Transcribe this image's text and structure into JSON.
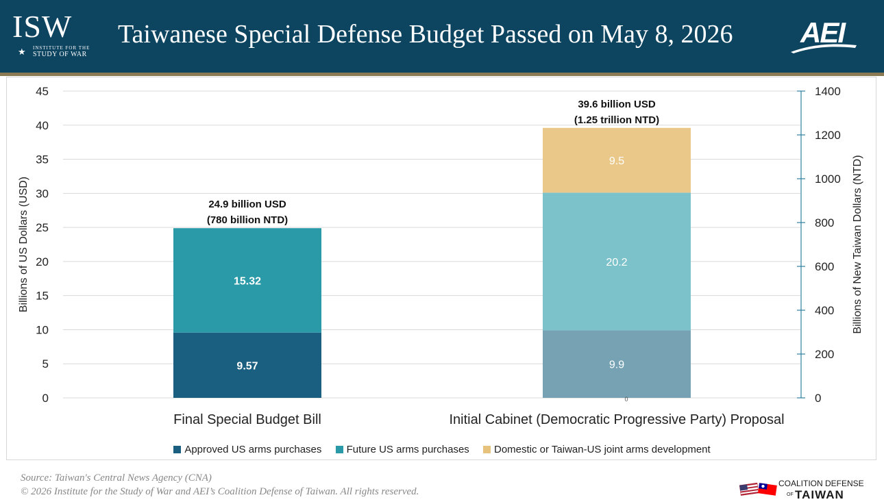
{
  "header": {
    "title": "Taiwanese Special Defense Budget Passed on May 8, 2026",
    "isw_logo": {
      "mark": "ISW",
      "line1": "INSTITUTE FOR THE",
      "line2": "STUDY OF WAR"
    },
    "aei_logo": {
      "mark": "AEI"
    },
    "bg_color": "#0d4460",
    "rule_color": "#8c7a55"
  },
  "chart_data": {
    "type": "bar",
    "stacked": true,
    "categories": [
      "Final Special Budget Bill",
      "Initial Cabinet (Democratic Progressive Party) Proposal"
    ],
    "series": [
      {
        "name": "Approved US arms purchases",
        "values": [
          9.57,
          9.9
        ],
        "color": "#1b5f80",
        "colors": [
          "#1b5f80",
          "#76a2b4"
        ],
        "value_labels": [
          "9.57",
          "9.9"
        ]
      },
      {
        "name": "Future US arms purchases",
        "values": [
          15.32,
          20.2
        ],
        "color": "#2a9aa8",
        "colors": [
          "#2a9aa8",
          "#7cc2ca"
        ],
        "value_labels": [
          "15.32",
          "20.2"
        ]
      },
      {
        "name": "Domestic or Taiwan-US joint arms development",
        "values": [
          0,
          9.5
        ],
        "color": "#e6c27c",
        "colors": [
          "#e6c27c",
          "#eac889"
        ],
        "value_labels": [
          "",
          "9.5"
        ]
      }
    ],
    "totals": [
      {
        "line1": "24.9 billion USD",
        "line2": "(780 billion NTD)"
      },
      {
        "line1": "39.6 billion USD",
        "line2": "(1.25 trillion NTD)"
      }
    ],
    "zero_label": "0",
    "ylabel": "Billions of US Dollars (USD)",
    "ylim": [
      0,
      45
    ],
    "yticks": [
      0,
      5,
      10,
      15,
      20,
      25,
      30,
      35,
      40,
      45
    ],
    "y2label": "Billions of New Taiwan Dollars (NTD)",
    "y2lim": [
      0,
      1400
    ],
    "y2ticks": [
      0,
      200,
      400,
      600,
      800,
      1000,
      1200,
      1400
    ],
    "grid": true,
    "legend": "bottom"
  },
  "footer": {
    "source_line1": "Source: Taiwan's Central News Agency (CNA)",
    "source_line2": "© 2026 Institute for the Study of War and AEI’s Coalition Defense of Taiwan. All rights reserved.",
    "cdt_logo": {
      "line1": "COALITION DEFENSE",
      "of": "OF",
      "line2": "TAIWAN"
    }
  }
}
